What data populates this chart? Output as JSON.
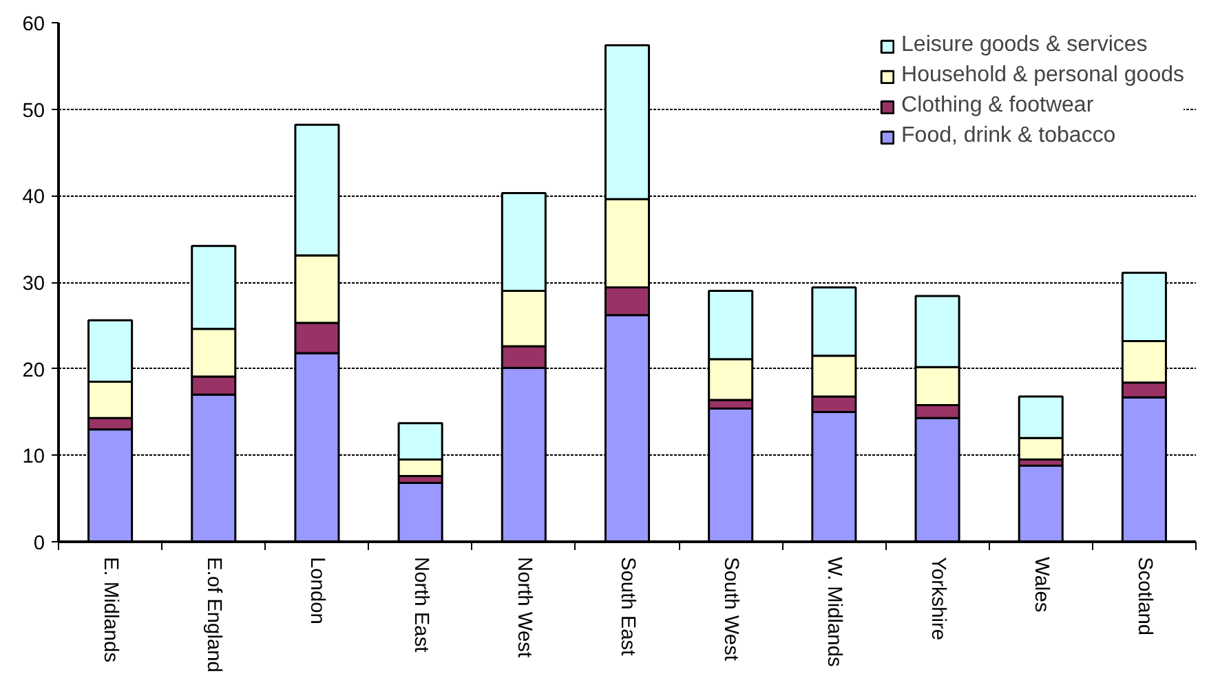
{
  "chart_data": {
    "type": "bar",
    "stacked": true,
    "categories": [
      "E. Midlands",
      "E.of England",
      "London",
      "North East",
      "North West",
      "South East",
      "South West",
      "W. Midlands",
      "Yorkshire",
      "Wales",
      "Scotland"
    ],
    "series": [
      {
        "name": "Food, drink & tobacco",
        "color": "#9999ff",
        "values": [
          13,
          17,
          21.8,
          6.8,
          20.1,
          26.2,
          15.4,
          15,
          14.3,
          8.8,
          16.7
        ]
      },
      {
        "name": "Clothing & footwear",
        "color": "#993366",
        "values": [
          1.3,
          2.1,
          3.5,
          0.8,
          2.5,
          3.2,
          1.0,
          1.8,
          1.5,
          0.7,
          1.7
        ]
      },
      {
        "name": "Household & personal goods",
        "color": "#ffffcc",
        "values": [
          4.2,
          5.5,
          7.8,
          1.9,
          6.4,
          10.2,
          4.7,
          4.7,
          4.4,
          2.5,
          4.8
        ]
      },
      {
        "name": "Leisure goods & services",
        "color": "#ccffff",
        "values": [
          7.1,
          9.6,
          15.1,
          4.2,
          11.3,
          17.8,
          7.9,
          7.9,
          8.2,
          4.8,
          7.9
        ]
      }
    ],
    "ylim": [
      0,
      60
    ],
    "yticks": [
      0,
      10,
      20,
      30,
      40,
      50,
      60
    ],
    "grid": "y",
    "legend": "top right"
  }
}
